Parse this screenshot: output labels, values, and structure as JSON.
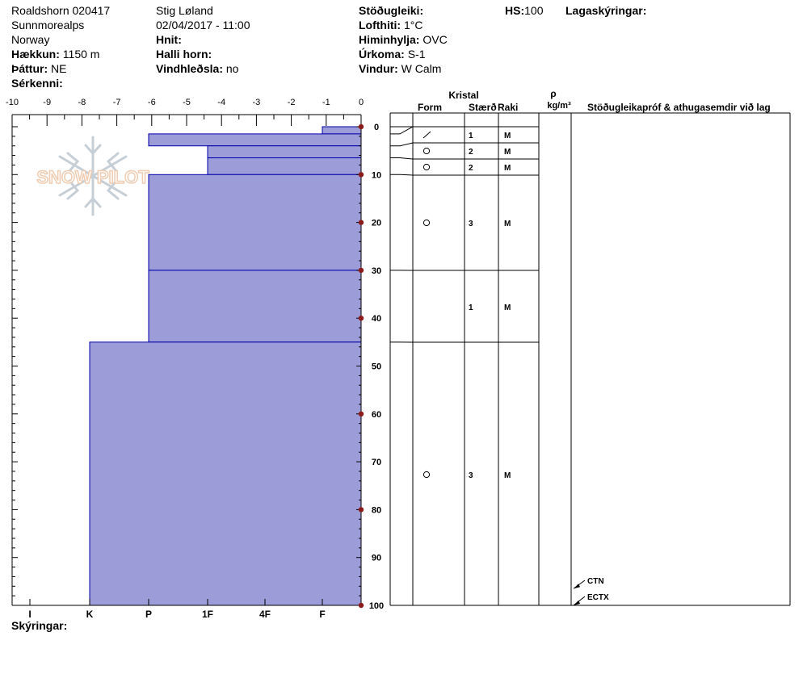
{
  "header": {
    "site": "Roaldshorn 020417",
    "region": "Sunnmorealps",
    "country": "Norway",
    "elevation_label": "Hækkun:",
    "elevation_value": "1150 m",
    "aspect_label": "Þáttur:",
    "aspect_value": "NE",
    "features_label": "Sérkenni:",
    "observer": "Stig Løland",
    "datetime": "02/04/2017 - 11:00",
    "coords_label": "Hnit:",
    "slope_label": "Halli horn:",
    "wind_loading_label": "Vindhleðsla:",
    "wind_loading_value": "no",
    "stability_label": "Stöðugleiki:",
    "air_temp_label": "Lofthiti:",
    "air_temp_value": "1°C",
    "sky_label": "Himinhylja:",
    "sky_value": "OVC",
    "precip_label": "Úrkoma:",
    "precip_value": "S-1",
    "wind_label": "Vindur:",
    "wind_value": "W Calm",
    "hs_label": "HS:",
    "hs_value": "100",
    "layer_notes_label": "Lagaskýringar:",
    "comments_label": "Skýringar:"
  },
  "logo": {
    "text": "SNOW PILOT"
  },
  "table_headers": {
    "crystal": "Kristal",
    "form": "Form",
    "size": "Stærð",
    "moisture": "Raki",
    "rho": "ρ",
    "density_unit": "kg/m³",
    "tests": "Stöðugleikapróf & athugasemdir við lag"
  },
  "colors": {
    "fill": "#9c9cd8",
    "line": "#0000aa",
    "marker": "#8b1a1a"
  },
  "chart_data": {
    "type": "bar",
    "orientation": "horizontal",
    "title": "",
    "x_ticks_top": [
      "-10",
      "-9",
      "-8",
      "-7",
      "-6",
      "-5",
      "-4",
      "-3",
      "-2",
      "-1",
      "0"
    ],
    "xlim": [
      -10,
      0
    ],
    "hardness_labels": [
      "I",
      "K",
      "P",
      "1F",
      "4F",
      "F"
    ],
    "y_ticks": [
      "0",
      "10",
      "20",
      "30",
      "40",
      "50",
      "60",
      "70",
      "80",
      "90",
      "100"
    ],
    "ylim": [
      0,
      100
    ],
    "temperature_markers": [
      0,
      10,
      20,
      30,
      40,
      60,
      80,
      100
    ],
    "layers": [
      {
        "top": 0,
        "bottom": 1.5,
        "hardness": "F",
        "level": 1,
        "form": "",
        "size": "",
        "moisture": ""
      },
      {
        "top": 1.5,
        "bottom": 4,
        "hardness": "P",
        "level": 4,
        "form": "slash",
        "size": "1",
        "moisture": "M"
      },
      {
        "top": 4,
        "bottom": 6.5,
        "hardness": "1F",
        "level": 3,
        "form": "circle",
        "size": "2",
        "moisture": "M"
      },
      {
        "top": 6.5,
        "bottom": 10,
        "hardness": "1F",
        "level": 3,
        "form": "circle",
        "size": "2",
        "moisture": "M"
      },
      {
        "top": 10,
        "bottom": 30,
        "hardness": "P",
        "level": 4,
        "form": "circle",
        "size": "3",
        "moisture": "M"
      },
      {
        "top": 30,
        "bottom": 45,
        "hardness": "P",
        "level": 4,
        "form": "",
        "size": "1",
        "moisture": "M"
      },
      {
        "top": 45,
        "bottom": 100,
        "hardness": "K",
        "level": 5,
        "form": "circle",
        "size": "3",
        "moisture": "M"
      }
    ],
    "tests": [
      {
        "label": "CTN",
        "depth": 96.5
      },
      {
        "label": "ECTX",
        "depth": 100
      }
    ]
  }
}
